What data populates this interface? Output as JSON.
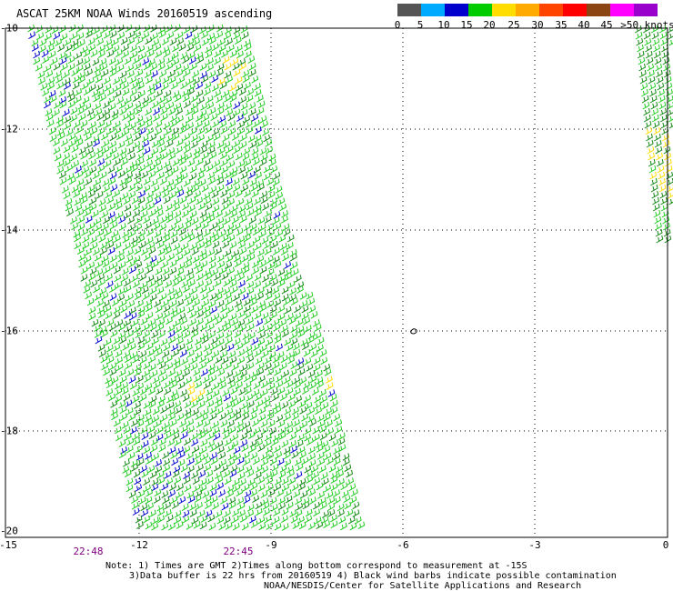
{
  "title": "ASCAT 25KM NOAA Winds 20160519 ascending",
  "legend": {
    "colors": [
      "#555555",
      "#00aaff",
      "#0000cc",
      "#00cc00",
      "#ffdd00",
      "#ffaa00",
      "#ff4400",
      "#ff0000",
      "#8b4513",
      "#ff00ff",
      "#9900cc",
      "#330066"
    ],
    "ticks": [
      "0",
      "5",
      "10",
      "15",
      "20",
      "25",
      "30",
      "35",
      "40",
      "45",
      ">50 knots"
    ]
  },
  "map": {
    "lat_labels": [
      "-10",
      "-12",
      "-14",
      "-16",
      "-18",
      "-20"
    ],
    "lon_labels": [
      "-15",
      "-12",
      "-9",
      "-6",
      "-3",
      "0"
    ],
    "time_labels": [
      "22:48",
      "22:45"
    ],
    "grid": true
  },
  "notes": {
    "line1": "Note: 1) Times are GMT 2)Times along bottom correspond to measurement at -15S",
    "line2": "3)Data buffer is 22 hrs from 20160519 4) Black wind barbs indicate possible contamination",
    "line3": "NOAA/NESDIS/Center for Satellite Applications and Research"
  }
}
